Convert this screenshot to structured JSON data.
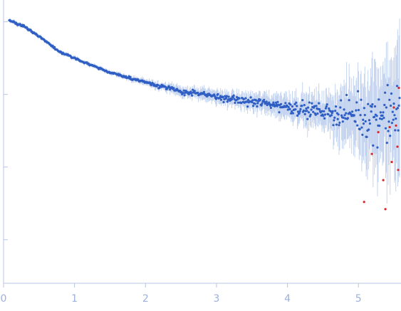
{
  "chart_data": {
    "type": "scatter",
    "title": "",
    "xlabel": "",
    "ylabel": "",
    "xlim": [
      0,
      5.6
    ],
    "ylim_log10": [
      -3.6,
      0.3
    ],
    "y_scale": "log",
    "x_ticks": [
      "0",
      "1",
      "2",
      "3",
      "4",
      "5"
    ],
    "x_tick_values": [
      0,
      1,
      2,
      3,
      4,
      5
    ],
    "y_tick_values_log10": [
      0,
      -1,
      -2,
      -3
    ],
    "grid": false,
    "legend": "none",
    "colors": {
      "points": "#2f5fc4",
      "error_bars": "#bfd0ee",
      "outliers": "#d9262b",
      "axis": "#b7c4e6",
      "tick_labels": "#9db0dc"
    },
    "series": [
      {
        "profile_log10": [
          [
            0.08,
            0.02
          ],
          [
            0.3,
            -0.07
          ],
          [
            0.6,
            -0.27
          ],
          [
            0.8,
            -0.42
          ],
          [
            1.0,
            -0.5
          ],
          [
            1.2,
            -0.58
          ],
          [
            1.5,
            -0.7
          ],
          [
            1.8,
            -0.78
          ],
          [
            2.0,
            -0.83
          ],
          [
            2.3,
            -0.91
          ],
          [
            2.5,
            -0.96
          ],
          [
            2.8,
            -1.0
          ],
          [
            3.0,
            -1.03
          ],
          [
            3.3,
            -1.08
          ],
          [
            3.5,
            -1.1
          ],
          [
            3.8,
            -1.14
          ],
          [
            4.0,
            -1.17
          ],
          [
            4.3,
            -1.21
          ],
          [
            4.5,
            -1.24
          ],
          [
            4.8,
            -1.27
          ],
          [
            5.0,
            -1.3
          ],
          [
            5.2,
            -1.3
          ],
          [
            5.55,
            -1.28
          ]
        ],
        "n_points": 620
      }
    ],
    "outliers_log10": [
      [
        5.08,
        -2.48
      ],
      [
        5.19,
        -1.82
      ],
      [
        5.28,
        -1.52
      ],
      [
        5.35,
        -2.18
      ],
      [
        5.38,
        -2.58
      ],
      [
        5.44,
        -1.45
      ],
      [
        5.47,
        -1.93
      ],
      [
        5.5,
        -1.18
      ],
      [
        5.53,
        -1.43
      ],
      [
        5.55,
        -1.72
      ],
      [
        5.56,
        -2.04
      ],
      [
        5.57,
        -0.91
      ]
    ]
  }
}
